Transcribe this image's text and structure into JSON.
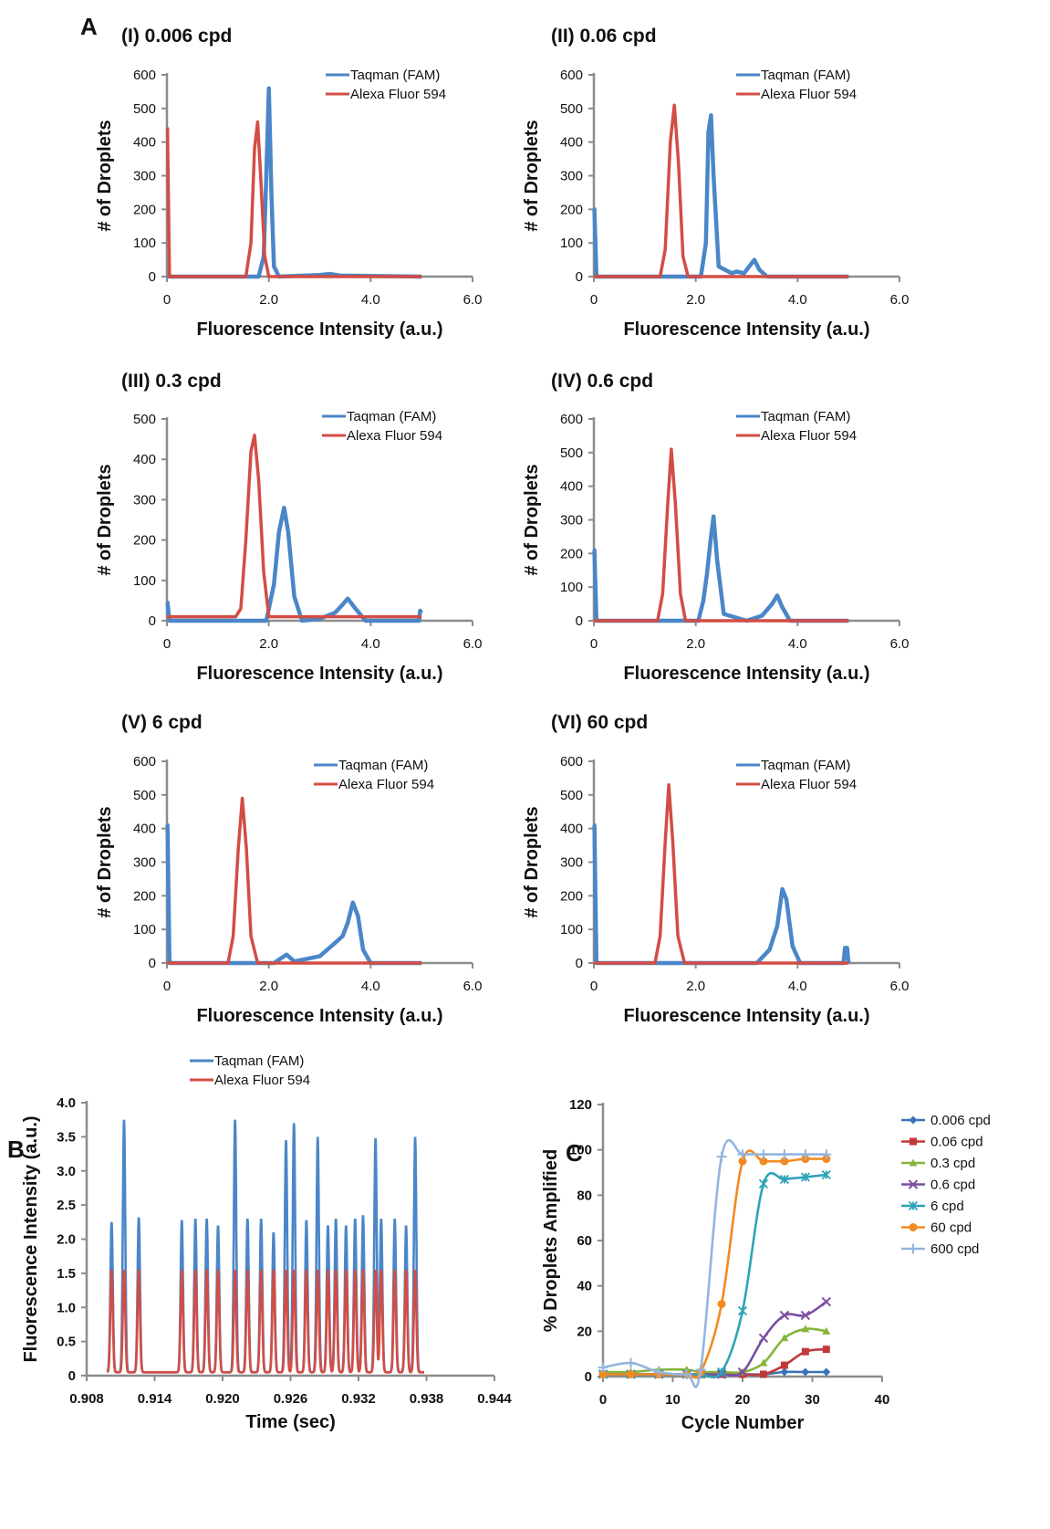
{
  "figure_letters": [
    "A",
    "B",
    "C"
  ],
  "colors": {
    "taqman": "#4a86c8",
    "alexa": "#d24d45",
    "axis": "#8c8c8c",
    "c_series": [
      "#3a73b8",
      "#c0393b",
      "#86b53d",
      "#7a4fa0",
      "#2fa3b8",
      "#f28a23",
      "#93b5de"
    ]
  },
  "chart_data": [
    {
      "panel": "A-I",
      "type": "line",
      "title": "(I) 0.006 cpd",
      "xlabel": "Fluorescence Intensity (a.u.)",
      "ylabel": "# of Droplets",
      "xlim": [
        0,
        6
      ],
      "ylim": [
        0,
        600
      ],
      "xticks": [
        "0",
        "2.0",
        "4.0",
        "6.0"
      ],
      "yticks": [
        "0",
        "100",
        "200",
        "300",
        "400",
        "500",
        "600"
      ],
      "legend_position": "top-right",
      "series": [
        {
          "name": "Taqman (FAM)",
          "x": [
            0,
            1.8,
            1.9,
            1.95,
            2.0,
            2.05,
            2.1,
            2.2,
            3.0,
            3.2,
            3.4,
            5.0
          ],
          "y": [
            0,
            0,
            60,
            300,
            560,
            250,
            30,
            0,
            5,
            8,
            3,
            0
          ]
        },
        {
          "name": "Alexa Fluor 594",
          "x": [
            0,
            0.01,
            0.05,
            1.55,
            1.65,
            1.72,
            1.78,
            1.84,
            1.92,
            2.0,
            5.0
          ],
          "y": [
            440,
            440,
            0,
            0,
            100,
            380,
            460,
            300,
            60,
            0,
            0
          ]
        }
      ]
    },
    {
      "panel": "A-II",
      "type": "line",
      "title": "(II) 0.06 cpd",
      "xlabel": "Fluorescence Intensity (a.u.)",
      "ylabel": "# of Droplets",
      "xlim": [
        0,
        6
      ],
      "ylim": [
        0,
        600
      ],
      "xticks": [
        "0",
        "2.0",
        "4.0",
        "6.0"
      ],
      "yticks": [
        "0",
        "100",
        "200",
        "300",
        "400",
        "500",
        "600"
      ],
      "legend_position": "top-right",
      "series": [
        {
          "name": "Taqman (FAM)",
          "x": [
            0,
            0.01,
            0.05,
            2.1,
            2.2,
            2.25,
            2.3,
            2.35,
            2.45,
            2.7,
            2.8,
            2.95,
            3.05,
            3.15,
            3.25,
            3.4,
            5.0
          ],
          "y": [
            200,
            200,
            0,
            0,
            100,
            430,
            480,
            300,
            30,
            10,
            15,
            10,
            30,
            50,
            20,
            0,
            0
          ]
        },
        {
          "name": "Alexa Fluor 594",
          "x": [
            0,
            1.3,
            1.4,
            1.5,
            1.58,
            1.66,
            1.75,
            1.85,
            5.0
          ],
          "y": [
            0,
            0,
            80,
            400,
            510,
            340,
            60,
            0,
            0
          ]
        }
      ]
    },
    {
      "panel": "A-III",
      "type": "line",
      "title": "(III) 0.3 cpd",
      "xlabel": "Fluorescence Intensity (a.u.)",
      "ylabel": "# of Droplets",
      "xlim": [
        0,
        6
      ],
      "ylim": [
        0,
        500
      ],
      "xticks": [
        "0",
        "2.0",
        "4.0",
        "6.0"
      ],
      "yticks": [
        "0",
        "100",
        "200",
        "300",
        "400",
        "500"
      ],
      "legend_position": "top-right",
      "series": [
        {
          "name": "Taqman (FAM)",
          "x": [
            0,
            0.01,
            0.05,
            1.95,
            2.1,
            2.2,
            2.3,
            2.38,
            2.5,
            2.65,
            3.0,
            3.3,
            3.45,
            3.55,
            3.7,
            3.9,
            4.95,
            4.97,
            5.0
          ],
          "y": [
            45,
            45,
            0,
            0,
            90,
            220,
            280,
            220,
            60,
            0,
            5,
            20,
            40,
            55,
            30,
            0,
            0,
            25,
            20
          ]
        },
        {
          "name": "Alexa Fluor 594",
          "x": [
            0,
            1.35,
            1.45,
            1.55,
            1.65,
            1.72,
            1.8,
            1.9,
            2.0,
            5.0
          ],
          "y": [
            10,
            10,
            30,
            200,
            420,
            460,
            350,
            120,
            10,
            10
          ]
        }
      ]
    },
    {
      "panel": "A-IV",
      "type": "line",
      "title": "(IV) 0.6 cpd",
      "xlabel": "Fluorescence Intensity (a.u.)",
      "ylabel": "# of Droplets",
      "xlim": [
        0,
        6
      ],
      "ylim": [
        0,
        600
      ],
      "xticks": [
        "0",
        "2.0",
        "4.0",
        "6.0"
      ],
      "yticks": [
        "0",
        "100",
        "200",
        "300",
        "400",
        "500",
        "600"
      ],
      "legend_position": "top-right",
      "series": [
        {
          "name": "Taqman (FAM)",
          "x": [
            0,
            0.01,
            0.05,
            2.05,
            2.15,
            2.22,
            2.3,
            2.35,
            2.42,
            2.55,
            3.0,
            3.3,
            3.5,
            3.6,
            3.7,
            3.85,
            5.0
          ],
          "y": [
            210,
            210,
            0,
            0,
            60,
            140,
            250,
            310,
            180,
            20,
            0,
            15,
            50,
            75,
            40,
            0,
            0
          ]
        },
        {
          "name": "Alexa Fluor 594",
          "x": [
            0,
            1.25,
            1.35,
            1.45,
            1.52,
            1.6,
            1.7,
            1.8,
            5.0
          ],
          "y": [
            0,
            0,
            80,
            350,
            510,
            350,
            80,
            0,
            0
          ]
        }
      ]
    },
    {
      "panel": "A-V",
      "type": "line",
      "title": "(V) 6 cpd",
      "xlabel": "Fluorescence Intensity (a.u.)",
      "ylabel": "# of Droplets",
      "xlim": [
        0,
        6
      ],
      "ylim": [
        0,
        600
      ],
      "xticks": [
        "0",
        "2.0",
        "4.0",
        "6.0"
      ],
      "yticks": [
        "0",
        "100",
        "200",
        "300",
        "400",
        "500",
        "600"
      ],
      "legend_position": "top-right",
      "series": [
        {
          "name": "Taqman (FAM)",
          "x": [
            0,
            0.01,
            0.05,
            2.1,
            2.25,
            2.35,
            2.5,
            3.0,
            3.3,
            3.45,
            3.55,
            3.65,
            3.75,
            3.85,
            4.0,
            5.0
          ],
          "y": [
            410,
            410,
            0,
            0,
            15,
            25,
            5,
            20,
            60,
            80,
            120,
            180,
            140,
            40,
            0,
            0
          ]
        },
        {
          "name": "Alexa Fluor 594",
          "x": [
            0,
            1.2,
            1.3,
            1.4,
            1.48,
            1.56,
            1.65,
            1.78,
            5.0
          ],
          "y": [
            0,
            0,
            80,
            340,
            490,
            340,
            80,
            0,
            0
          ]
        }
      ]
    },
    {
      "panel": "A-VI",
      "type": "line",
      "title": "(VI) 60 cpd",
      "xlabel": "Fluorescence Intensity (a.u.)",
      "ylabel": "# of Droplets",
      "xlim": [
        0,
        6
      ],
      "ylim": [
        0,
        600
      ],
      "xticks": [
        "0",
        "2.0",
        "4.0",
        "6.0"
      ],
      "yticks": [
        "0",
        "100",
        "200",
        "300",
        "400",
        "500",
        "600"
      ],
      "legend_position": "top-right",
      "series": [
        {
          "name": "Taqman (FAM)",
          "x": [
            0,
            0.01,
            0.05,
            3.2,
            3.45,
            3.6,
            3.7,
            3.78,
            3.9,
            4.05,
            4.9,
            4.93,
            4.97,
            5.0
          ],
          "y": [
            410,
            410,
            0,
            0,
            40,
            110,
            220,
            190,
            50,
            0,
            0,
            45,
            45,
            0
          ]
        },
        {
          "name": "Alexa Fluor 594",
          "x": [
            0,
            1.2,
            1.3,
            1.4,
            1.47,
            1.55,
            1.65,
            1.78,
            5.0
          ],
          "y": [
            0,
            0,
            80,
            360,
            530,
            360,
            80,
            0,
            0
          ]
        }
      ]
    },
    {
      "panel": "B",
      "type": "line",
      "xlabel": "Time (sec)",
      "ylabel": "Fluorescence Intensity (a.u.)",
      "xlim": [
        0.908,
        0.944
      ],
      "ylim": [
        0,
        4.0
      ],
      "xticks": [
        "0.908",
        "0.914",
        "0.920",
        "0.926",
        "0.932",
        "0.938",
        "0.944"
      ],
      "yticks": [
        "0",
        "0.5",
        "1.0",
        "1.5",
        "2.0",
        "2.5",
        "3.0",
        "3.5",
        "4.0"
      ],
      "legend_position": "top",
      "baseline": 0.05,
      "peak_width_sec": 0.0003,
      "series": [
        {
          "name": "Taqman (FAM)",
          "peak_times": [
            0.9102,
            0.9113,
            0.9126,
            0.9164,
            0.9176,
            0.9186,
            0.9196,
            0.9211,
            0.9222,
            0.9234,
            0.9245,
            0.9256,
            0.9263,
            0.9274,
            0.9284,
            0.9293,
            0.93,
            0.9309,
            0.9317,
            0.9324,
            0.9335,
            0.934,
            0.9352,
            0.9362,
            0.937
          ],
          "peak_heights": [
            2.25,
            3.75,
            2.32,
            2.28,
            2.3,
            2.3,
            2.2,
            3.75,
            2.3,
            2.3,
            2.1,
            3.45,
            3.7,
            2.28,
            3.5,
            2.2,
            2.3,
            2.2,
            2.3,
            2.35,
            3.48,
            2.3,
            2.3,
            2.2,
            3.5
          ]
        },
        {
          "name": "Alexa Fluor 594",
          "peak_times": [
            0.9102,
            0.9113,
            0.9126,
            0.9164,
            0.9176,
            0.9186,
            0.9196,
            0.9211,
            0.9222,
            0.9234,
            0.9245,
            0.9256,
            0.9263,
            0.9274,
            0.9284,
            0.9293,
            0.93,
            0.9309,
            0.9317,
            0.9324,
            0.9335,
            0.934,
            0.9352,
            0.9362,
            0.937
          ],
          "peak_heights": [
            1.55,
            1.55,
            1.55,
            1.55,
            1.55,
            1.55,
            1.55,
            1.55,
            1.55,
            1.55,
            1.55,
            1.55,
            1.55,
            1.55,
            1.55,
            1.55,
            1.55,
            1.55,
            1.55,
            1.55,
            1.55,
            1.55,
            1.55,
            1.55,
            1.55
          ]
        }
      ]
    },
    {
      "panel": "C",
      "type": "line",
      "xlabel": "Cycle Number",
      "ylabel": "% Droplets Amplified",
      "xlim": [
        0,
        40
      ],
      "ylim": [
        0,
        120
      ],
      "xticks": [
        "0",
        "10",
        "20",
        "30",
        "40"
      ],
      "yticks": [
        "0",
        "20",
        "40",
        "60",
        "80",
        "100",
        "120"
      ],
      "legend_position": "right",
      "series": [
        {
          "name": "0.006 cpd",
          "marker": "diamond",
          "x": [
            0,
            4,
            8,
            12,
            14,
            17,
            20,
            23,
            26,
            29,
            32
          ],
          "y": [
            1,
            1,
            1,
            1,
            1,
            1,
            1,
            1,
            2,
            2,
            2
          ]
        },
        {
          "name": "0.06 cpd",
          "marker": "square",
          "x": [
            0,
            4,
            8,
            12,
            14,
            17,
            20,
            23,
            26,
            29,
            32
          ],
          "y": [
            1,
            1,
            1,
            1,
            1,
            1,
            1,
            1,
            5,
            11,
            12
          ]
        },
        {
          "name": "0.3 cpd",
          "marker": "triangle",
          "x": [
            0,
            4,
            8,
            12,
            14,
            17,
            20,
            23,
            26,
            29,
            32
          ],
          "y": [
            2,
            2,
            3,
            3,
            2,
            2,
            2,
            6,
            17,
            21,
            20
          ]
        },
        {
          "name": "0.6 cpd",
          "marker": "x",
          "x": [
            0,
            4,
            8,
            12,
            14,
            17,
            20,
            23,
            26,
            29,
            32
          ],
          "y": [
            1,
            1,
            1,
            1,
            1,
            1,
            2,
            17,
            27,
            27,
            33
          ]
        },
        {
          "name": "6 cpd",
          "marker": "asterisk",
          "x": [
            0,
            4,
            8,
            12,
            14,
            17,
            20,
            23,
            26,
            29,
            32
          ],
          "y": [
            1,
            1,
            1,
            1,
            1,
            2,
            29,
            85,
            87,
            88,
            89
          ]
        },
        {
          "name": "60 cpd",
          "marker": "circle",
          "x": [
            0,
            4,
            8,
            12,
            14,
            17,
            20,
            23,
            26,
            29,
            32
          ],
          "y": [
            1,
            1,
            1,
            1,
            2,
            32,
            95,
            95,
            95,
            96,
            96
          ]
        },
        {
          "name": "600 cpd",
          "marker": "plus",
          "x": [
            0,
            4,
            8,
            12,
            14,
            17,
            20,
            23,
            26,
            29,
            32
          ],
          "y": [
            4,
            6,
            2,
            1,
            3,
            97,
            98,
            98,
            98,
            98,
            98
          ]
        }
      ]
    }
  ]
}
